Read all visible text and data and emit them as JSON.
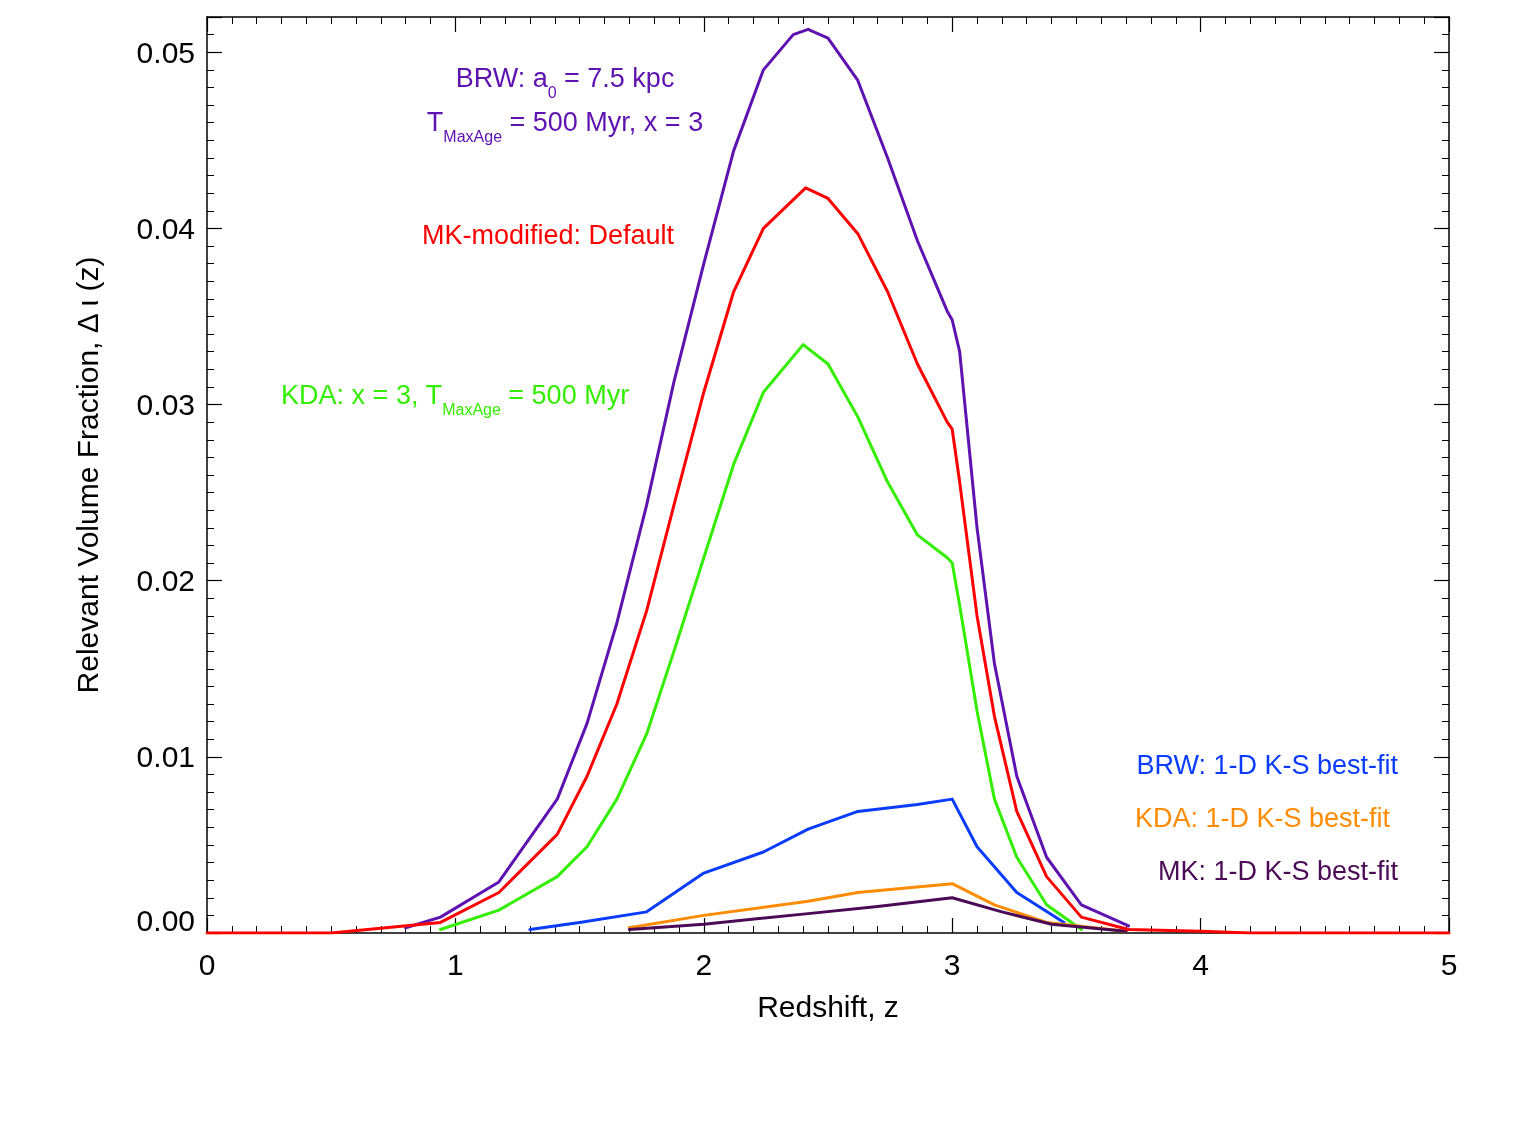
{
  "chart_data": {
    "type": "line",
    "xlabel": "Redshift, z",
    "ylabel": "Relevant Volume Fraction, Δ ι (z)",
    "xlim": [
      0,
      5
    ],
    "xticks": [
      0,
      1,
      2,
      3,
      4,
      5
    ],
    "ylim": [
      0,
      0.052
    ],
    "yticks": [
      {
        "value": 0,
        "label": "0.00"
      },
      {
        "value": 0.01,
        "label": "0.01"
      },
      {
        "value": 0.02,
        "label": "0.02"
      },
      {
        "value": 0.03,
        "label": "0.03"
      },
      {
        "value": 0.04,
        "label": "0.04"
      },
      {
        "value": 0.05,
        "label": "0.05"
      }
    ],
    "grid": false,
    "legend": false,
    "series": [
      {
        "name": "BRW: a$_{0}$ = 7.5 kpc\nT$_{MaxAge}$ = 500 Myr, x = 3",
        "color": "#5e12b0",
        "x": [
          0.8,
          0.94,
          1.175,
          1.41,
          1.53,
          1.65,
          1.77,
          1.88,
          2.0,
          2.12,
          2.24,
          2.36,
          2.42,
          2.5,
          2.62,
          2.74,
          2.86,
          2.98,
          3.0,
          3.03,
          3.1,
          3.17,
          3.26,
          3.38,
          3.52,
          3.71
        ],
        "values": [
          0.0003,
          0.0009,
          0.0029,
          0.0076,
          0.0119,
          0.0176,
          0.0243,
          0.0313,
          0.038,
          0.0444,
          0.049,
          0.051,
          0.0513,
          0.0508,
          0.0484,
          0.044,
          0.0393,
          0.0353,
          0.0348,
          0.033,
          0.023,
          0.0153,
          0.0089,
          0.0043,
          0.0016,
          0.0004
        ]
      },
      {
        "name": "KDA: x = 3, T$_{MaxAge}$ = 500 Myr",
        "color": "#33ee00",
        "x": [
          0.94,
          1.175,
          1.41,
          1.53,
          1.65,
          1.77,
          1.88,
          2.0,
          2.12,
          2.24,
          2.4,
          2.5,
          2.62,
          2.74,
          2.86,
          2.98,
          3.0,
          3.03,
          3.1,
          3.17,
          3.26,
          3.38,
          3.52
        ],
        "values": [
          0.0002,
          0.0013,
          0.0032,
          0.0049,
          0.0076,
          0.0113,
          0.016,
          0.0213,
          0.0266,
          0.0307,
          0.0334,
          0.0323,
          0.0293,
          0.0256,
          0.0226,
          0.0213,
          0.021,
          0.0186,
          0.0126,
          0.0076,
          0.0043,
          0.0016,
          0.0002
        ]
      },
      {
        "name": "BRW: 1-D K-S best-fit",
        "color": "#0a3cff",
        "x": [
          1.3,
          1.5,
          1.77,
          2.0,
          2.24,
          2.42,
          2.62,
          2.86,
          3.0,
          3.1,
          3.26,
          3.45
        ],
        "values": [
          0.0002,
          0.0006,
          0.0012,
          0.0034,
          0.0046,
          0.0059,
          0.0069,
          0.0073,
          0.0076,
          0.0049,
          0.0023,
          0.0006
        ]
      },
      {
        "name": "KDA: 1-D K-S best-fit",
        "color": "#ff8c00",
        "x": [
          1.7,
          2.0,
          2.42,
          2.62,
          3.0,
          3.17,
          3.38,
          3.7
        ],
        "values": [
          0.0003,
          0.001,
          0.0018,
          0.0023,
          0.0028,
          0.0016,
          0.0006,
          0.0001
        ]
      },
      {
        "name": "MK: 1-D K-S best-fit",
        "color": "#4b0a55",
        "x": [
          1.7,
          2.0,
          2.42,
          2.7,
          3.0,
          3.2,
          3.4,
          3.7
        ],
        "values": [
          0.0002,
          0.0005,
          0.0011,
          0.0015,
          0.002,
          0.0012,
          0.0005,
          0.0001
        ]
      },
      {
        "name": "MK-modified: Default",
        "color": "#ff0000",
        "x": [
          0,
          0.5,
          0.94,
          1.175,
          1.41,
          1.53,
          1.65,
          1.77,
          1.88,
          2.0,
          2.12,
          2.24,
          2.41,
          2.5,
          2.62,
          2.74,
          2.86,
          2.98,
          3.0,
          3.03,
          3.1,
          3.17,
          3.26,
          3.38,
          3.52,
          3.71,
          4.0,
          4.2,
          5
        ],
        "values": [
          0,
          0,
          0.0006,
          0.0023,
          0.0056,
          0.0089,
          0.013,
          0.0183,
          0.0243,
          0.0307,
          0.0364,
          0.04,
          0.0423,
          0.0417,
          0.0397,
          0.0364,
          0.0323,
          0.029,
          0.0286,
          0.0256,
          0.018,
          0.0123,
          0.0069,
          0.0032,
          0.0009,
          0.0002,
          0.0001,
          0,
          0
        ]
      }
    ]
  }
}
